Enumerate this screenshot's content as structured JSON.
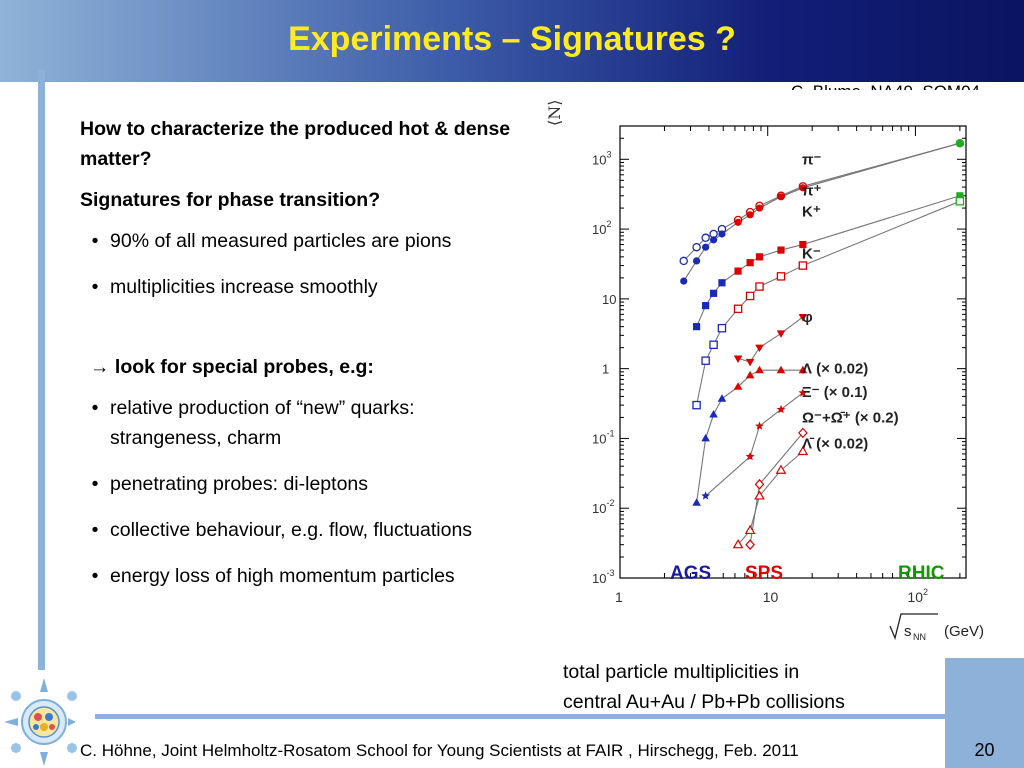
{
  "header": {
    "title": "Experiments – Signatures ?"
  },
  "credit": "C. Blume, NA49, SQM04",
  "content": {
    "q1": "How to characterize the produced hot & dense matter?",
    "q2": "Signatures for phase transition?",
    "bullets_a": [
      "90% of all measured particles are pions",
      "multiplicities increase smoothly"
    ],
    "probes_heading": "→ look for special probes, e.g:",
    "bullets_b": [
      "relative production of “new” quarks: strangeness, charm",
      "penetrating probes: di-leptons",
      "collective behaviour, e.g. flow, fluctuations",
      "energy loss of high momentum particles"
    ],
    "bullet_char": "•"
  },
  "caption": {
    "line1": "total particle multiplicities in",
    "line2": "central Au+Au / Pb+Pb collisions"
  },
  "footer": {
    "text": "C. Höhne,   Joint Helmholtz-Rosatom School for Young Scientists at FAIR , Hirschegg, Feb. 2011",
    "page": "20"
  },
  "colors": {
    "title": "#ffeb20",
    "ags": "#1a1aa0",
    "sps": "#e00000",
    "rhic": "#119900",
    "bars": "#8eb1d9"
  },
  "chart_data": {
    "type": "scatter",
    "xscale": "log",
    "yscale": "log",
    "xlabel_sqrt": "s",
    "xlabel_sub": "NN",
    "xlabel_unit": "(GeV)",
    "ylabel": "⟨N⟩",
    "xlim": [
      1,
      220
    ],
    "ylim": [
      0.001,
      3000
    ],
    "xticks": [
      {
        "v": 1,
        "base": "1",
        "exp": ""
      },
      {
        "v": 10,
        "base": "10",
        "exp": ""
      },
      {
        "v": 100,
        "base": "10",
        "exp": "2"
      }
    ],
    "yticks": [
      {
        "v": 0.001,
        "base": "10",
        "exp": "-3"
      },
      {
        "v": 0.01,
        "base": "10",
        "exp": "-2"
      },
      {
        "v": 0.1,
        "base": "10",
        "exp": "-1"
      },
      {
        "v": 1,
        "base": "1",
        "exp": ""
      },
      {
        "v": 10,
        "base": "10",
        "exp": ""
      },
      {
        "v": 100,
        "base": "10",
        "exp": "2"
      },
      {
        "v": 1000,
        "base": "10",
        "exp": "3"
      }
    ],
    "regions": [
      "AGS",
      "SPS",
      "RHIC"
    ],
    "series": [
      {
        "name": "π⁻",
        "color": "#dd0000",
        "marker": "circle-open",
        "legend_y": 1000,
        "x": [
          2.7,
          3.3,
          3.8,
          4.3,
          4.9,
          6.3,
          7.6,
          8.8,
          12.3,
          17.3,
          200
        ],
        "y": [
          35,
          55,
          75,
          85,
          100,
          135,
          175,
          215,
          300,
          410,
          1700
        ]
      },
      {
        "name": "π⁺",
        "color": "#dd0000",
        "marker": "circle-filled",
        "legend_y": 360,
        "x": [
          2.7,
          3.3,
          3.8,
          4.3,
          4.9,
          6.3,
          7.6,
          8.8,
          12.3,
          17.3,
          200
        ],
        "y": [
          18,
          35,
          55,
          70,
          85,
          125,
          160,
          200,
          290,
          390,
          1700
        ]
      },
      {
        "name": "K⁺",
        "color": "#dd0000",
        "marker": "square-filled",
        "legend_y": 180,
        "x": [
          3.3,
          3.8,
          4.3,
          4.9,
          6.3,
          7.6,
          8.8,
          12.3,
          17.3,
          200
        ],
        "y": [
          4,
          8,
          12,
          17,
          25,
          33,
          40,
          50,
          60,
          300
        ]
      },
      {
        "name": "K⁻",
        "color": "#dd0000",
        "marker": "square-open",
        "legend_y": 45,
        "x": [
          3.3,
          3.8,
          4.3,
          4.9,
          6.3,
          7.6,
          8.8,
          12.3,
          17.3,
          200
        ],
        "y": [
          0.3,
          1.3,
          2.2,
          3.8,
          7.2,
          11,
          15,
          21,
          30,
          250
        ]
      },
      {
        "name": "φ",
        "color": "#dd0000",
        "marker": "tri-down",
        "legend_y": 5.5,
        "x": [
          6.3,
          7.6,
          8.8,
          12.3,
          17.3
        ],
        "y": [
          1.4,
          1.25,
          2.0,
          3.2,
          5.5
        ]
      },
      {
        "name": "Λ (× 0.02)",
        "color": "#dd0000",
        "marker": "tri-up",
        "legend_y": 1.0,
        "x": [
          3.3,
          3.8,
          4.3,
          4.9,
          6.3,
          7.6,
          8.8,
          12.3,
          17.3
        ],
        "y": [
          0.012,
          0.1,
          0.22,
          0.37,
          0.55,
          0.8,
          0.95,
          0.95,
          0.95
        ]
      },
      {
        "name": "Ξ⁻ (× 0.1)",
        "color": "#dd0000",
        "marker": "star",
        "legend_y": 0.46,
        "x": [
          3.8,
          7.6,
          8.8,
          12.3,
          17.3
        ],
        "y": [
          0.015,
          0.055,
          0.15,
          0.26,
          0.45
        ]
      },
      {
        "name": "Ω⁻+Ω̄⁺ (× 0.2)",
        "color": "#dd0000",
        "marker": "diamond-open",
        "legend_y": 0.2,
        "x": [
          7.6,
          8.8,
          17.3
        ],
        "y": [
          0.003,
          0.022,
          0.12
        ]
      },
      {
        "name": "Λ̄ (× 0.02)",
        "color": "#dd0000",
        "marker": "tri-up-open",
        "legend_y": 0.085,
        "x": [
          6.3,
          7.6,
          8.8,
          12.3,
          17.3
        ],
        "y": [
          0.003,
          0.0048,
          0.015,
          0.035,
          0.065
        ]
      }
    ]
  }
}
